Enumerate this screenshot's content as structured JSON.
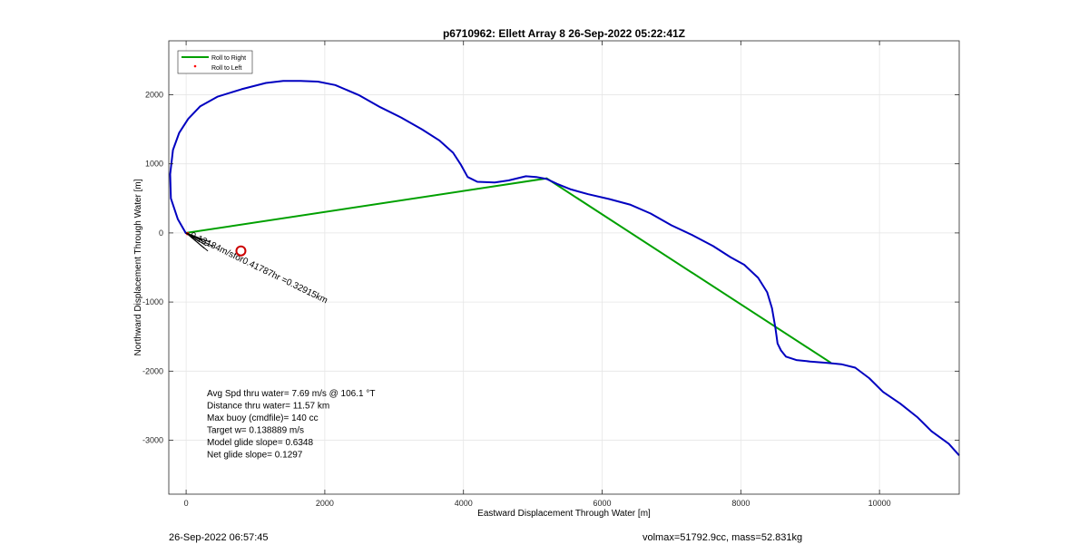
{
  "chart_data": {
    "type": "line",
    "title": "p6710962: Ellett Array 8 26-Sep-2022 05:22:41Z",
    "xlabel": "Eastward Displacement Through Water [m]",
    "ylabel": "Northward Displacement Through Water [m]",
    "xlim": [
      -250,
      11150
    ],
    "ylim": [
      -3780,
      2780
    ],
    "xticks": [
      0,
      2000,
      4000,
      6000,
      8000,
      10000
    ],
    "yticks": [
      -3000,
      -2000,
      -1000,
      0,
      1000,
      2000
    ],
    "grid": true,
    "legend": {
      "position": "top-left",
      "entries": [
        {
          "label": "Roll to Right",
          "color": "#00A000",
          "style": "line"
        },
        {
          "label": "Roll to Left",
          "color": "#FF0000",
          "style": "point"
        }
      ]
    },
    "series": [
      {
        "name": "Roll to Right",
        "color": "#00A000",
        "x": [
          0,
          5200,
          9300
        ],
        "y": [
          0,
          790,
          -1880
        ]
      },
      {
        "color": "#0000C0",
        "x": [
          0,
          -120,
          -220,
          -230,
          -190,
          -100,
          30,
          200,
          450,
          800,
          1150,
          1400,
          1650,
          1900,
          2150,
          2500,
          2800,
          3100,
          3400,
          3650,
          3850,
          3960,
          4060,
          4200,
          4450,
          4650,
          4900,
          5050,
          5200,
          5350,
          5550,
          5800,
          6100,
          6400,
          6700,
          7000,
          7300,
          7600,
          7850,
          8050,
          8250,
          8380,
          8450,
          8500,
          8530,
          8580,
          8650,
          8800,
          9000,
          9250,
          9450,
          9650,
          9850,
          10050,
          10300,
          10550,
          10750,
          11000,
          11150
        ],
        "y": [
          -10,
          200,
          500,
          850,
          1200,
          1450,
          1650,
          1830,
          1970,
          2080,
          2170,
          2200,
          2200,
          2190,
          2140,
          1990,
          1820,
          1670,
          1500,
          1340,
          1160,
          990,
          810,
          740,
          730,
          760,
          820,
          810,
          780,
          710,
          630,
          560,
          490,
          410,
          280,
          110,
          -30,
          -190,
          -350,
          -460,
          -650,
          -860,
          -1090,
          -1380,
          -1600,
          -1700,
          -1790,
          -1840,
          -1860,
          -1880,
          -1900,
          -1950,
          -2100,
          -2300,
          -2470,
          -2670,
          -2870,
          -3050,
          -3220
        ]
      },
      {
        "name": "Roll to Left",
        "color": "#FF0000",
        "x": [
          20
        ],
        "y": [
          -10
        ]
      }
    ],
    "annotations": [
      {
        "text": "0.13184m/sfor0.41787hr =0.32915km",
        "x": 50,
        "y": -60,
        "angle_deg": 26
      },
      {
        "text_lines": [
          "Avg Spd thru water=  7.69 m/s @ 106.1 °T",
          "Distance thru water= 11.57 km",
          "Max buoy (cmdfile)= 140 cc",
          "Target w= 0.138889 m/s",
          "Model glide slope= 0.6348",
          "Net glide slope= 0.1297"
        ],
        "x": 300,
        "y": -2360
      }
    ],
    "markers": [
      {
        "shape": "circle",
        "color": "#CC0000",
        "x": 790,
        "y": -260
      }
    ]
  },
  "footer": {
    "left": "26-Sep-2022 06:57:45",
    "right": "volmax=51792.9cc, mass=52.831kg"
  }
}
